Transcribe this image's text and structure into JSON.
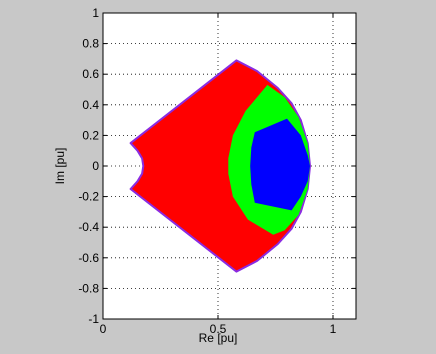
{
  "chart_data": {
    "type": "area",
    "title": "",
    "xlabel": "Re [pu]",
    "ylabel": "Im [pu]",
    "xlim": [
      0,
      1.1
    ],
    "ylim": [
      -1,
      1
    ],
    "xticks": [
      0,
      0.5,
      1
    ],
    "xtick_labels": [
      "0",
      "0.5",
      "1"
    ],
    "yticks": [
      -1,
      -0.8,
      -0.6,
      -0.4,
      -0.2,
      0,
      0.2,
      0.4,
      0.6,
      0.8,
      1
    ],
    "ytick_labels": [
      "-1",
      "-0.8",
      "-0.6",
      "-0.4",
      "-0.2",
      "0",
      "0.2",
      "0.4",
      "0.6",
      "0.8",
      "1"
    ],
    "grid": true,
    "grid_style": "dotted",
    "background_color": "#c8c8c8",
    "axes_color": "#ffffff",
    "regions": [
      {
        "color": "#ff0000",
        "edge_color": "#8a2be2",
        "points": [
          [
            0.58,
            0.69
          ],
          [
            0.67,
            0.62
          ],
          [
            0.76,
            0.51
          ],
          [
            0.82,
            0.41
          ],
          [
            0.86,
            0.3
          ],
          [
            0.89,
            0.15
          ],
          [
            0.9,
            0.0
          ],
          [
            0.89,
            -0.15
          ],
          [
            0.86,
            -0.3
          ],
          [
            0.82,
            -0.41
          ],
          [
            0.76,
            -0.51
          ],
          [
            0.67,
            -0.62
          ],
          [
            0.58,
            -0.69
          ],
          [
            0.12,
            -0.15
          ],
          [
            0.15,
            -0.1
          ],
          [
            0.17,
            -0.05
          ],
          [
            0.175,
            0.0
          ],
          [
            0.17,
            0.05
          ],
          [
            0.15,
            0.1
          ],
          [
            0.12,
            0.15
          ]
        ]
      },
      {
        "color": "#00ff00",
        "edge_color": "",
        "points": [
          [
            0.715,
            0.53
          ],
          [
            0.79,
            0.45
          ],
          [
            0.85,
            0.32
          ],
          [
            0.89,
            0.15
          ],
          [
            0.9,
            0.0
          ],
          [
            0.89,
            -0.15
          ],
          [
            0.85,
            -0.32
          ],
          [
            0.79,
            -0.42
          ],
          [
            0.74,
            -0.45
          ],
          [
            0.63,
            -0.35
          ],
          [
            0.565,
            -0.2
          ],
          [
            0.545,
            -0.05
          ],
          [
            0.545,
            0.05
          ],
          [
            0.565,
            0.2
          ],
          [
            0.62,
            0.36
          ]
        ]
      },
      {
        "color": "#0000ff",
        "edge_color": "",
        "points": [
          [
            0.66,
            0.22
          ],
          [
            0.8,
            0.31
          ],
          [
            0.86,
            0.2
          ],
          [
            0.89,
            0.07
          ],
          [
            0.9,
            0.0
          ],
          [
            0.89,
            -0.1
          ],
          [
            0.86,
            -0.2
          ],
          [
            0.82,
            -0.29
          ],
          [
            0.66,
            -0.24
          ],
          [
            0.645,
            -0.12
          ],
          [
            0.64,
            0.0
          ],
          [
            0.645,
            0.12
          ]
        ]
      }
    ]
  }
}
